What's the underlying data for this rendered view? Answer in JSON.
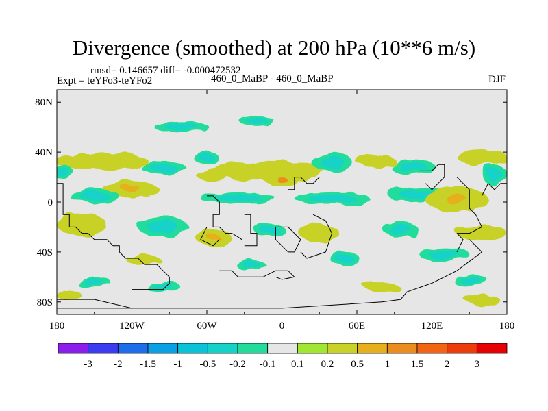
{
  "header": {
    "title": "Divergence (smoothed) at 200 hPa (10**6 m/s)",
    "stats": "rmsd= 0.146657 diff= -0.000472532",
    "experiment": "Expt = teYFo3-teYFo2",
    "case": "460_0_MaBP - 460_0_MaBP",
    "season": "DJF"
  },
  "chart_data": {
    "type": "heatmap",
    "title": "Divergence (smoothed) at 200 hPa (10**6 m/s)",
    "xlabel": "",
    "ylabel": "",
    "xlim": [
      -180,
      180
    ],
    "ylim": [
      -90,
      90
    ],
    "x_ticks": [
      {
        "value": -180,
        "label": "180"
      },
      {
        "value": -120,
        "label": "120W"
      },
      {
        "value": -60,
        "label": "60W"
      },
      {
        "value": 0,
        "label": "0"
      },
      {
        "value": 60,
        "label": "60E"
      },
      {
        "value": 120,
        "label": "120E"
      },
      {
        "value": 180,
        "label": "180"
      }
    ],
    "y_ticks": [
      {
        "value": 80,
        "label": "80N"
      },
      {
        "value": 40,
        "label": "40N"
      },
      {
        "value": 0,
        "label": "0"
      },
      {
        "value": -40,
        "label": "40S"
      },
      {
        "value": -80,
        "label": "80S"
      }
    ],
    "colorbar": {
      "colors": [
        "#8c1eeb",
        "#3c3cf0",
        "#1e6eeb",
        "#0aa0e6",
        "#0ac3d7",
        "#14d2c8",
        "#23dc9b",
        "#e6e6e6",
        "#a0e632",
        "#c8d228",
        "#e6af1e",
        "#eb8c1e",
        "#f06414",
        "#eb3c0a",
        "#e60000"
      ],
      "labels": [
        "-3",
        "-2",
        "-1.5",
        "-1",
        "-0.5",
        "-0.2",
        "-0.1",
        "0.1",
        "0.2",
        "0.5",
        "1",
        "1.5",
        "2",
        "3"
      ]
    },
    "features": [
      {
        "name": "pos-patch",
        "lon": -145,
        "lat": 33,
        "rx": 38,
        "ry": 6,
        "value": 0.3
      },
      {
        "name": "neg-patch",
        "lon": -175,
        "lat": 24,
        "rx": 8,
        "ry": 6,
        "value": -0.3
      },
      {
        "name": "pos-patch",
        "lon": -120,
        "lat": 10,
        "rx": 22,
        "ry": 6,
        "value": 0.7
      },
      {
        "name": "neg-patch",
        "lon": -150,
        "lat": 5,
        "rx": 20,
        "ry": 5,
        "value": -0.3
      },
      {
        "name": "neg-patch",
        "lon": -95,
        "lat": 28,
        "rx": 18,
        "ry": 5,
        "value": -0.3
      },
      {
        "name": "neg-patch",
        "lon": -60,
        "lat": 35,
        "rx": 10,
        "ry": 5,
        "value": -0.3
      },
      {
        "name": "pos-patch",
        "lon": -55,
        "lat": 22,
        "rx": 14,
        "ry": 5,
        "value": 0.3
      },
      {
        "name": "neg-patch",
        "lon": -80,
        "lat": 60,
        "rx": 22,
        "ry": 4,
        "value": -0.3
      },
      {
        "name": "neg-patch",
        "lon": -20,
        "lat": 65,
        "rx": 14,
        "ry": 4,
        "value": -0.3
      },
      {
        "name": "pos-patch",
        "lon": -10,
        "lat": 25,
        "rx": 45,
        "ry": 8,
        "value": 0.4
      },
      {
        "name": "pos-patch",
        "lon": 0,
        "lat": 18,
        "rx": 12,
        "ry": 5,
        "value": 1.2
      },
      {
        "name": "neg-patch",
        "lon": 40,
        "lat": 32,
        "rx": 16,
        "ry": 8,
        "value": -0.4
      },
      {
        "name": "pos-patch",
        "lon": 75,
        "lat": 33,
        "rx": 16,
        "ry": 5,
        "value": 0.3
      },
      {
        "name": "neg-patch",
        "lon": 105,
        "lat": 28,
        "rx": 18,
        "ry": 6,
        "value": -0.4
      },
      {
        "name": "pos-patch",
        "lon": 160,
        "lat": 36,
        "rx": 20,
        "ry": 6,
        "value": 0.3
      },
      {
        "name": "neg-patch",
        "lon": 170,
        "lat": 22,
        "rx": 10,
        "ry": 8,
        "value": -0.3
      },
      {
        "name": "neg-patch",
        "lon": -35,
        "lat": 3,
        "rx": 30,
        "ry": 5,
        "value": -0.3
      },
      {
        "name": "neg-patch",
        "lon": 40,
        "lat": 3,
        "rx": 30,
        "ry": 5,
        "value": -0.4
      },
      {
        "name": "neg-patch",
        "lon": 110,
        "lat": 6,
        "rx": 25,
        "ry": 6,
        "value": -0.4
      },
      {
        "name": "pos-patch",
        "lon": 140,
        "lat": 2,
        "rx": 25,
        "ry": 10,
        "value": 0.5
      },
      {
        "name": "pos-patch",
        "lon": -160,
        "lat": -18,
        "rx": 20,
        "ry": 9,
        "value": 0.4
      },
      {
        "name": "neg-patch",
        "lon": -95,
        "lat": -20,
        "rx": 20,
        "ry": 8,
        "value": -0.4
      },
      {
        "name": "pos-patch",
        "lon": -55,
        "lat": -28,
        "rx": 14,
        "ry": 7,
        "value": 0.5
      },
      {
        "name": "neg-patch",
        "lon": -10,
        "lat": -22,
        "rx": 12,
        "ry": 6,
        "value": -0.4
      },
      {
        "name": "pos-patch",
        "lon": 30,
        "lat": -25,
        "rx": 16,
        "ry": 7,
        "value": 0.4
      },
      {
        "name": "neg-patch",
        "lon": 95,
        "lat": -22,
        "rx": 14,
        "ry": 6,
        "value": -0.3
      },
      {
        "name": "pos-patch",
        "lon": 160,
        "lat": -25,
        "rx": 20,
        "ry": 6,
        "value": 0.3
      },
      {
        "name": "pos-patch",
        "lon": -110,
        "lat": -47,
        "rx": 14,
        "ry": 4,
        "value": 0.3
      },
      {
        "name": "neg-patch",
        "lon": -25,
        "lat": -50,
        "rx": 12,
        "ry": 4,
        "value": -0.3
      },
      {
        "name": "neg-patch",
        "lon": 50,
        "lat": -45,
        "rx": 12,
        "ry": 5,
        "value": -0.3
      },
      {
        "name": "neg-patch",
        "lon": 130,
        "lat": -42,
        "rx": 20,
        "ry": 6,
        "value": -0.3
      },
      {
        "name": "neg-patch",
        "lon": -150,
        "lat": -65,
        "rx": 14,
        "ry": 4,
        "value": -0.3
      },
      {
        "name": "neg-patch",
        "lon": -95,
        "lat": -68,
        "rx": 14,
        "ry": 4,
        "value": -0.3
      },
      {
        "name": "pos-patch",
        "lon": 80,
        "lat": -68,
        "rx": 14,
        "ry": 4,
        "value": 0.3
      },
      {
        "name": "neg-patch",
        "lon": 150,
        "lat": -62,
        "rx": 14,
        "ry": 4,
        "value": -0.3
      },
      {
        "name": "pos-patch",
        "lon": -170,
        "lat": -75,
        "rx": 10,
        "ry": 4,
        "value": 0.3
      },
      {
        "name": "pos-patch",
        "lon": 160,
        "lat": -78,
        "rx": 14,
        "ry": 4,
        "value": 0.3
      }
    ],
    "coastlines": [
      [
        [
          -180,
          15
        ],
        [
          -175,
          15
        ],
        [
          -175,
          -10
        ],
        [
          -170,
          -10
        ],
        [
          -170,
          -20
        ],
        [
          -165,
          -20
        ],
        [
          -160,
          -25
        ],
        [
          -155,
          -25
        ],
        [
          -150,
          -30
        ],
        [
          -140,
          -30
        ],
        [
          -135,
          -35
        ],
        [
          -130,
          -35
        ],
        [
          -130,
          -40
        ],
        [
          -125,
          -45
        ],
        [
          -115,
          -45
        ],
        [
          -110,
          -50
        ],
        [
          -100,
          -50
        ],
        [
          -95,
          -55
        ],
        [
          -90,
          -60
        ],
        [
          -90,
          -65
        ],
        [
          -95,
          -70
        ],
        [
          -120,
          -70
        ],
        [
          -120,
          -75
        ]
      ],
      [
        [
          -60,
          5
        ],
        [
          -55,
          5
        ],
        [
          -50,
          0
        ],
        [
          -50,
          -10
        ],
        [
          -55,
          -10
        ],
        [
          -55,
          -20
        ],
        [
          -50,
          -20
        ],
        [
          -45,
          -25
        ],
        [
          -40,
          -25
        ],
        [
          -35,
          -28
        ],
        [
          -32,
          -30
        ]
      ],
      [
        [
          -60,
          -20
        ],
        [
          -65,
          -30
        ],
        [
          -55,
          -35
        ],
        [
          -50,
          -30
        ]
      ],
      [
        [
          -30,
          -10
        ],
        [
          -25,
          -10
        ],
        [
          -25,
          -25
        ],
        [
          -20,
          -25
        ],
        [
          -20,
          -35
        ],
        [
          -30,
          -35
        ]
      ],
      [
        [
          -5,
          -20
        ],
        [
          5,
          -20
        ],
        [
          10,
          -25
        ],
        [
          15,
          -30
        ],
        [
          10,
          -40
        ],
        [
          5,
          -40
        ],
        [
          0,
          -35
        ],
        [
          -5,
          -30
        ],
        [
          -5,
          -20
        ]
      ],
      [
        [
          -50,
          -55
        ],
        [
          -40,
          -55
        ],
        [
          -35,
          -60
        ],
        [
          -15,
          -60
        ],
        [
          -5,
          -55
        ]
      ],
      [
        [
          -5,
          -55
        ],
        [
          5,
          -55
        ],
        [
          10,
          -60
        ],
        [
          0,
          -62
        ],
        [
          -5,
          -60
        ]
      ],
      [
        [
          5,
          10
        ],
        [
          10,
          10
        ],
        [
          10,
          20
        ],
        [
          15,
          20
        ],
        [
          20,
          15
        ],
        [
          25,
          15
        ],
        [
          30,
          20
        ]
      ],
      [
        [
          25,
          -10
        ],
        [
          35,
          -15
        ],
        [
          40,
          -25
        ],
        [
          35,
          -40
        ],
        [
          20,
          -45
        ],
        [
          15,
          -40
        ]
      ],
      [
        [
          110,
          25
        ],
        [
          120,
          25
        ],
        [
          125,
          30
        ],
        [
          130,
          30
        ],
        [
          130,
          20
        ],
        [
          125,
          15
        ],
        [
          120,
          10
        ],
        [
          115,
          15
        ]
      ],
      [
        [
          140,
          20
        ],
        [
          145,
          15
        ],
        [
          150,
          10
        ],
        [
          150,
          -5
        ],
        [
          155,
          -10
        ],
        [
          160,
          -20
        ],
        [
          150,
          -25
        ],
        [
          140,
          -25
        ]
      ],
      [
        [
          160,
          5
        ],
        [
          165,
          15
        ],
        [
          170,
          10
        ],
        [
          175,
          15
        ],
        [
          180,
          15
        ]
      ],
      [
        [
          140,
          -40
        ],
        [
          145,
          -30
        ],
        [
          140,
          -25
        ]
      ],
      [
        [
          150,
          -30
        ],
        [
          155,
          -35
        ],
        [
          160,
          -40
        ],
        [
          140,
          -55
        ],
        [
          130,
          -60
        ],
        [
          120,
          -65
        ],
        [
          100,
          -72
        ],
        [
          95,
          -78
        ],
        [
          80,
          -80
        ],
        [
          0,
          -85
        ],
        [
          -120,
          -85
        ],
        [
          -150,
          -78
        ],
        [
          -180,
          -78
        ]
      ],
      [
        [
          -180,
          -85
        ],
        [
          -120,
          -85
        ]
      ],
      [
        [
          80,
          -55
        ],
        [
          80,
          -80
        ]
      ]
    ]
  }
}
